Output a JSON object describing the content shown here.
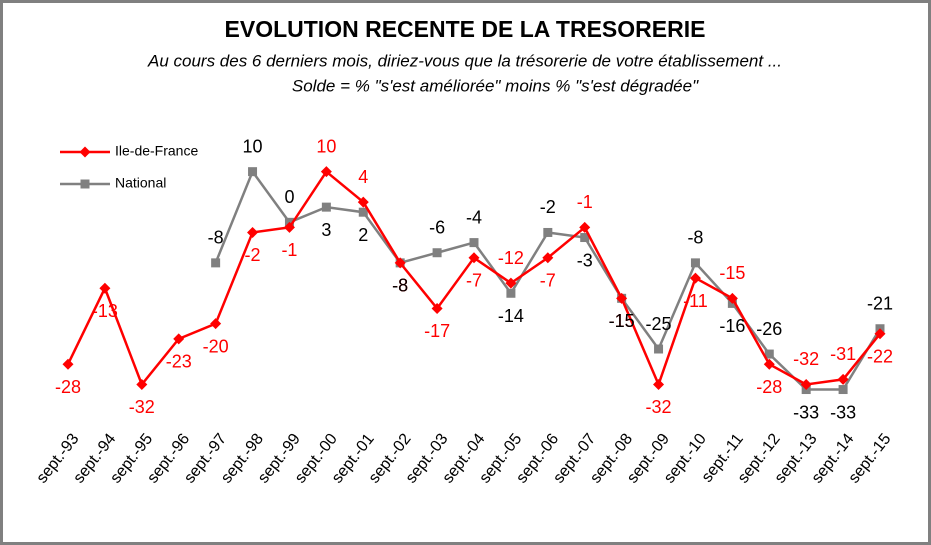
{
  "chart_data": {
    "type": "line",
    "title": "EVOLUTION RECENTE DE LA TRESORERIE",
    "subtitle": [
      "Au cours des 6 derniers mois, diriez-vous que la trésorerie de votre établissement ...",
      "Solde = % \"s'est améliorée\"  moins %  \"s'est dégradée\""
    ],
    "categories": [
      "sept.-93",
      "sept.-94",
      "sept.-95",
      "sept.-96",
      "sept.-97",
      "sept.-98",
      "sept.-99",
      "sept.-00",
      "sept.-01",
      "sept.-02",
      "sept.-03",
      "sept.-04",
      "sept.-05",
      "sept.-06",
      "sept.-07",
      "sept.-08",
      "sept.-09",
      "sept.-10",
      "sept.-11",
      "sept.-12",
      "sept.-13",
      "sept.-14",
      "sept.-15"
    ],
    "series": [
      {
        "name": "Ile-de-France",
        "color": "#ff0000",
        "marker": "diamond",
        "values": [
          -28,
          -13,
          -32,
          -23,
          -20,
          -2,
          -1,
          10,
          4,
          -8,
          -17,
          -7,
          -12,
          -7,
          -1,
          -15,
          -32,
          -11,
          -15,
          -28,
          -32,
          -31,
          -22
        ]
      },
      {
        "name": "National",
        "color": "#808080",
        "marker": "square",
        "values": [
          null,
          null,
          null,
          null,
          -8,
          10,
          0,
          3,
          2,
          -8,
          -6,
          -4,
          -14,
          -2,
          -3,
          -15,
          -25,
          -8,
          -16,
          -26,
          -33,
          -33,
          -21
        ]
      }
    ],
    "ylim": [
      -40,
      20
    ],
    "grid": false,
    "legend": "top-left"
  }
}
